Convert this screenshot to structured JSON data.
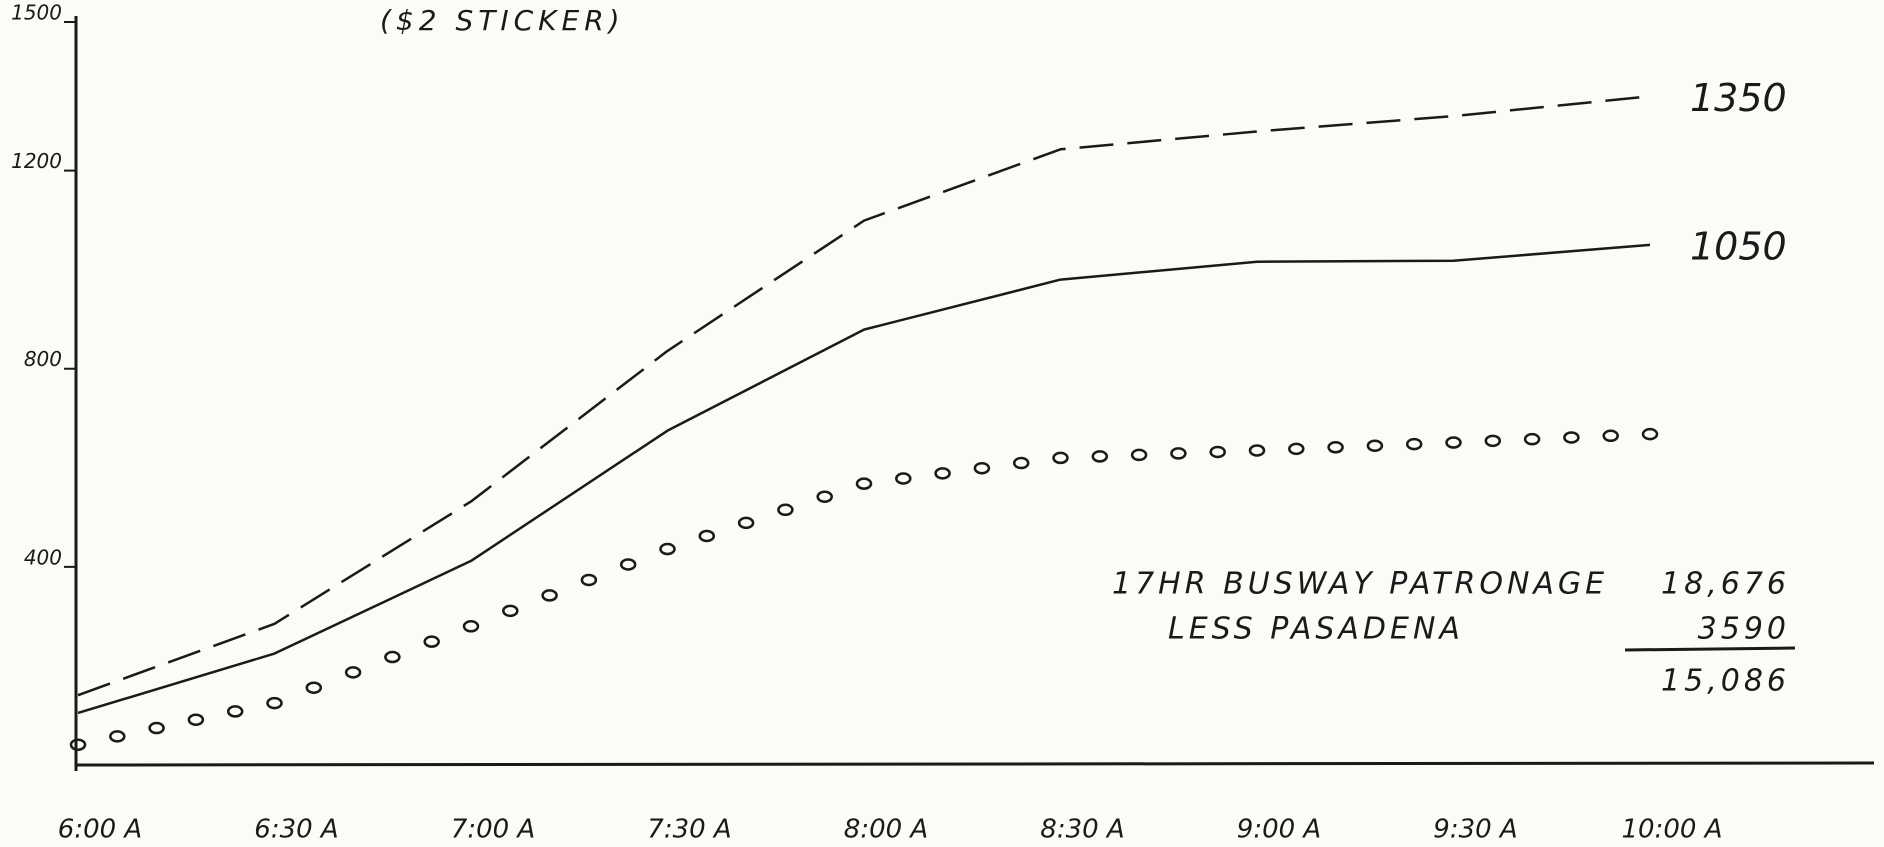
{
  "chart_data": {
    "type": "line",
    "title": "($2 STICKER)",
    "categories": [
      "6:00 A",
      "6:30 A",
      "7:00 A",
      "7:30 A",
      "8:00 A",
      "8:30 A",
      "9:00 A",
      "9:30 A",
      "10:00 A"
    ],
    "series": [
      {
        "color": "#1a1a1a",
        "dash": "dashed",
        "values": [
          141,
          285,
          532,
          836,
          1099,
          1243,
          1279,
          1310,
          1350
        ]
      },
      {
        "color": "#1a1a1a",
        "dash": "solid",
        "values": [
          105,
          225,
          412,
          675,
          879,
          980,
          1016,
          1018,
          1050
        ]
      },
      {
        "color": "#1a1a1a",
        "dash": "dotted",
        "values": [
          41,
          125,
          280,
          436,
          568,
          620,
          635,
          651,
          668
        ]
      }
    ],
    "end_labels": [
      0,
      1
    ],
    "ylim": [
      0,
      1500
    ],
    "yticks": [
      400,
      800,
      1200,
      1500
    ],
    "grid": false,
    "annotations": [
      {
        "label": "17HR BUSWAY PATRONAGE",
        "value": "18,676"
      },
      {
        "label": "LESS PASADENA",
        "value": "3590"
      },
      {
        "value": "15,086"
      }
    ]
  }
}
